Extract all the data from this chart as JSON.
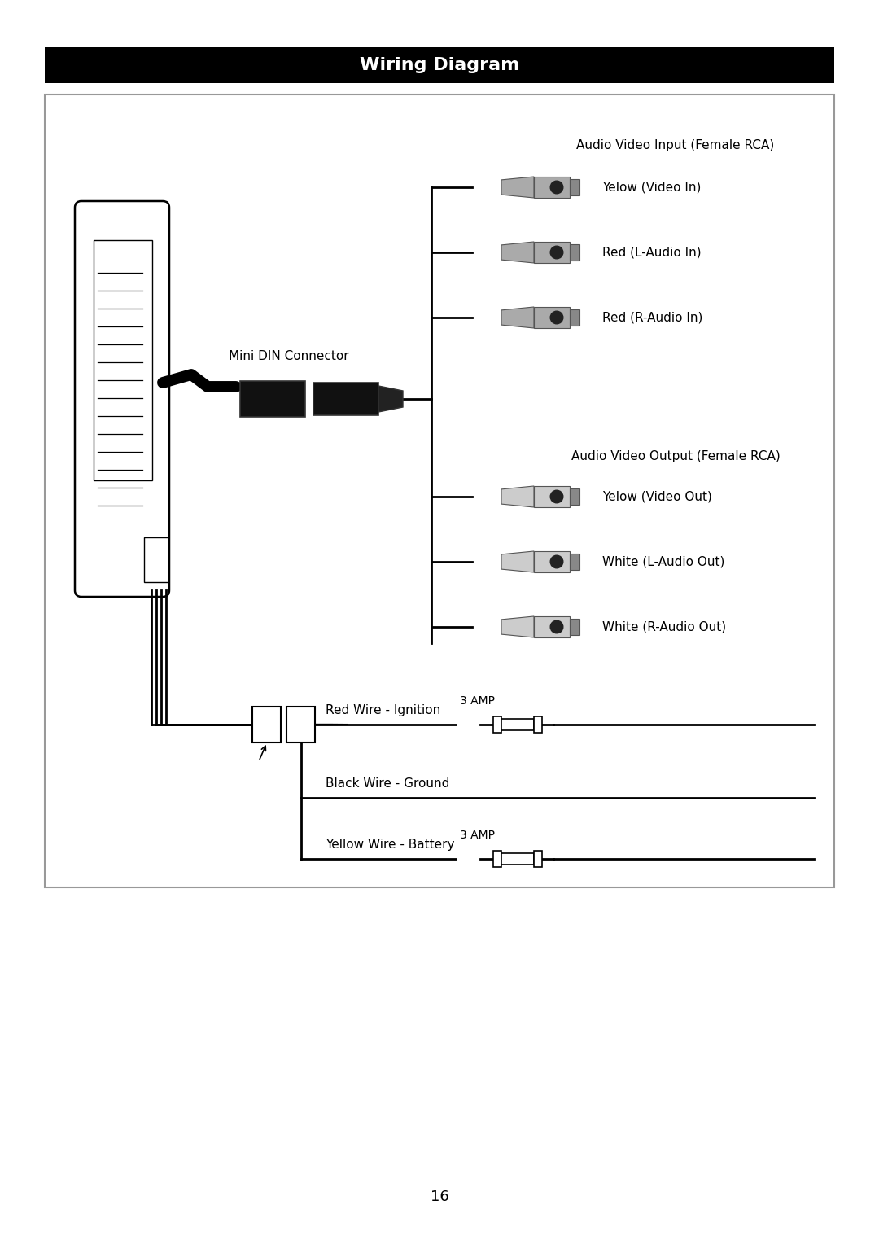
{
  "title": "Wiring Diagram",
  "title_bg": "#000000",
  "title_color": "#ffffff",
  "title_fontsize": 16,
  "page_bg": "#ffffff",
  "diagram_bg": "#ffffff",
  "diagram_border": "#888888",
  "page_num": "16",
  "input_label": "Audio Video Input (Female RCA)",
  "output_label": "Audio Video Output (Female RCA)",
  "mini_din_label": "Mini DIN Connector",
  "rca_inputs": [
    "Yelow (Video In)",
    "Red (L-Audio In)",
    "Red (R-Audio In)"
  ],
  "rca_outputs": [
    "Yelow (Video Out)",
    "White (L-Audio Out)",
    "White (R-Audio Out)"
  ],
  "power_labels": [
    "Red Wire - Ignition",
    "Black Wire - Ground",
    "Yellow Wire - Battery"
  ],
  "amp_label": "3 AMP",
  "connector_gray": "#aaaaaa",
  "connector_dark": "#777777",
  "wire_color": "#000000",
  "fuse_fill": "#ffffff",
  "fuse_border": "#000000"
}
